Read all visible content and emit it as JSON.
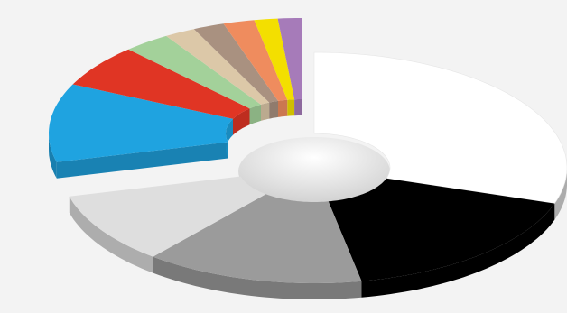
{
  "chart_data": {
    "type": "donut",
    "values": [
      30,
      17,
      14,
      10,
      11,
      6,
      3,
      2,
      2,
      2,
      1.5,
      1.5
    ],
    "colors": [
      "#ffffff",
      "#000000",
      "#9b9b9b",
      "#dedede",
      "#1fa3e0",
      "#e03524",
      "#a3d19a",
      "#dcc8a8",
      "#a99180",
      "#ef8c5e",
      "#f3df00",
      "#a67bb9"
    ]
  }
}
